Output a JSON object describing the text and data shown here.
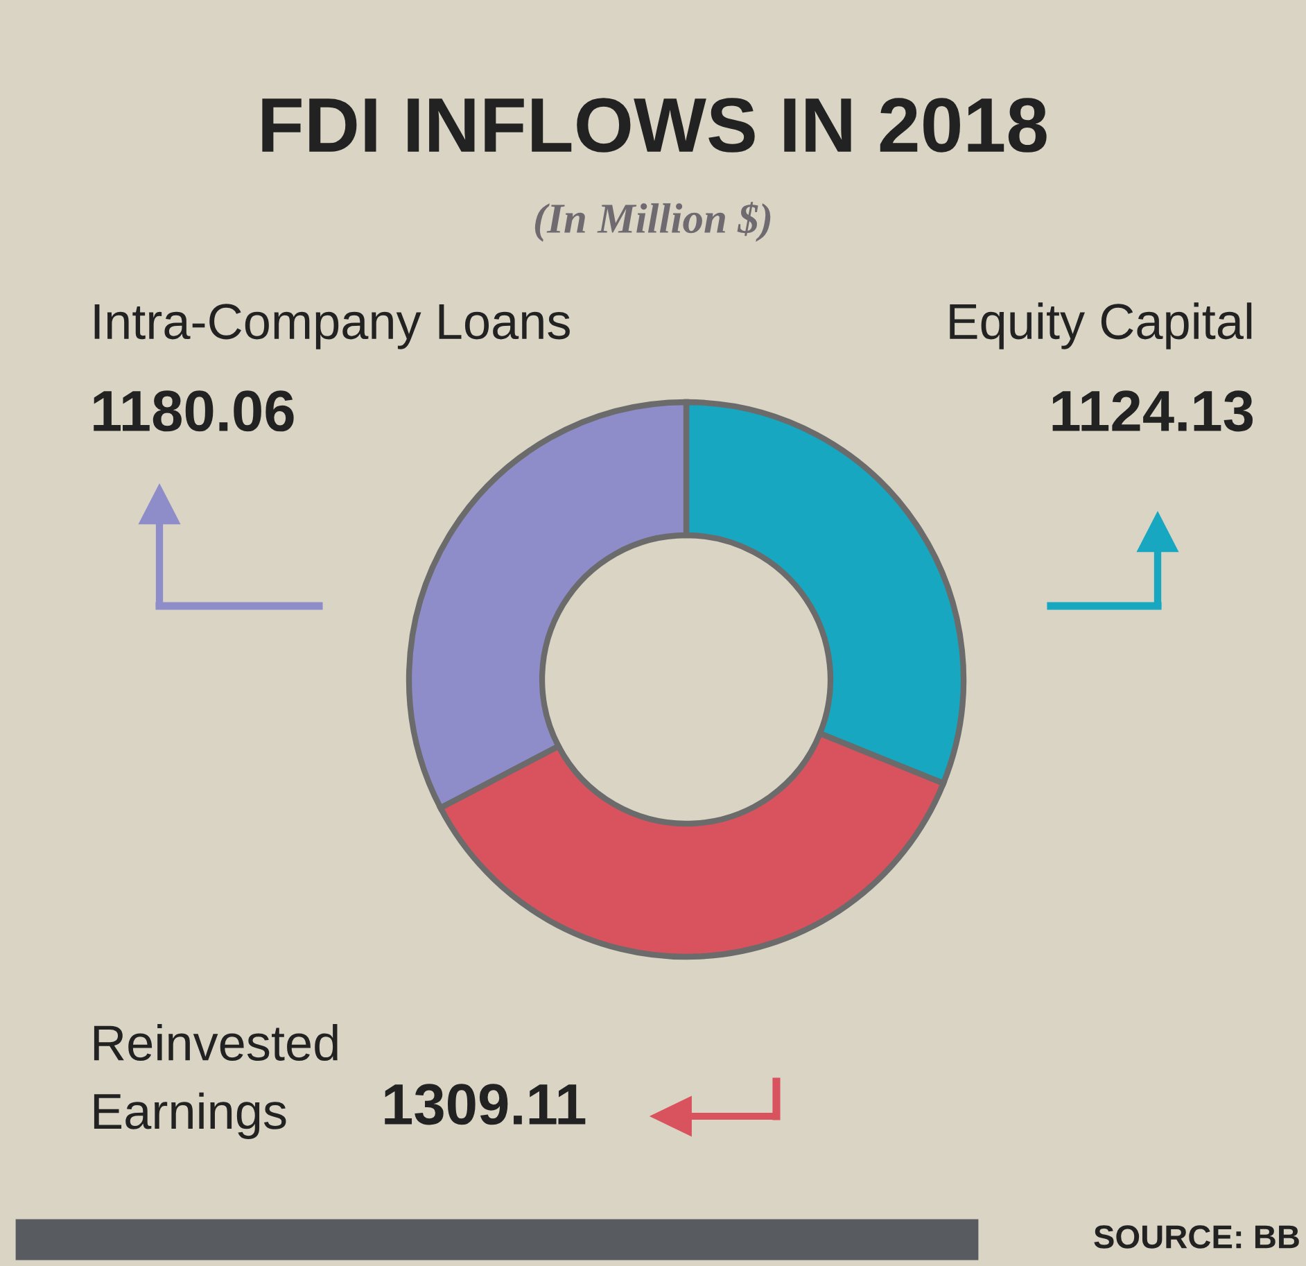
{
  "chart_data": {
    "type": "donut",
    "title": "FDI INFLOWS IN 2018",
    "subtitle": "(In Million $)",
    "categories": [
      "Equity Capital",
      "Reinvested Earnings",
      "Intra-Company Loans"
    ],
    "values": [
      1124.13,
      1309.11,
      1180.06
    ],
    "colors": [
      "#17a7c1",
      "#d9535f",
      "#8e8dca"
    ],
    "data_labels": true,
    "annotations": [
      "SOURCE: BB"
    ]
  }
}
